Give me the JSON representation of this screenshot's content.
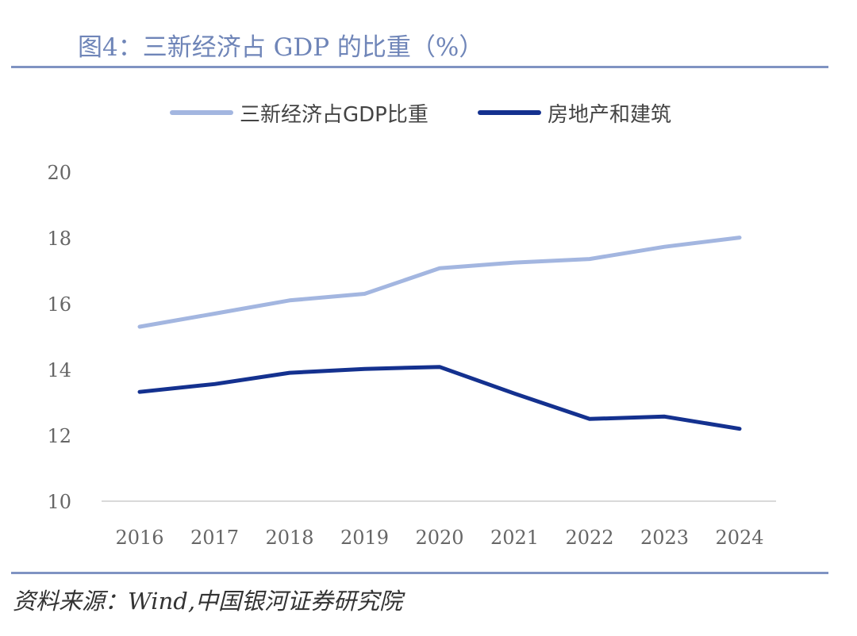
{
  "header": {
    "title": "图4：三新经济占 GDP 的比重（%）"
  },
  "footer": {
    "source": "资料来源：Wind,中国银河证券研究院"
  },
  "colors": {
    "accent": "#7f93c2",
    "series_light": "#a3b6e0",
    "series_dark": "#14318f"
  },
  "chart_data": {
    "type": "line",
    "title": "三新经济占 GDP 的比重（%）",
    "xlabel": "",
    "ylabel": "",
    "x": [
      "2016",
      "2017",
      "2018",
      "2019",
      "2020",
      "2021",
      "2022",
      "2023",
      "2024"
    ],
    "ylim": [
      10,
      20
    ],
    "yticks": [
      "10",
      "12",
      "14",
      "16",
      "18",
      "20"
    ],
    "legend_position": "top-center",
    "grid": false,
    "series": [
      {
        "name": "三新经济占GDP比重",
        "color": "#a3b6e0",
        "values": [
          15.3,
          15.7,
          16.1,
          16.3,
          17.08,
          17.25,
          17.36,
          17.73,
          18.01
        ]
      },
      {
        "name": "房地产和建筑",
        "color": "#14318f",
        "values": [
          13.32,
          13.56,
          13.9,
          14.02,
          14.08,
          13.27,
          12.5,
          12.57,
          12.2
        ]
      }
    ]
  }
}
